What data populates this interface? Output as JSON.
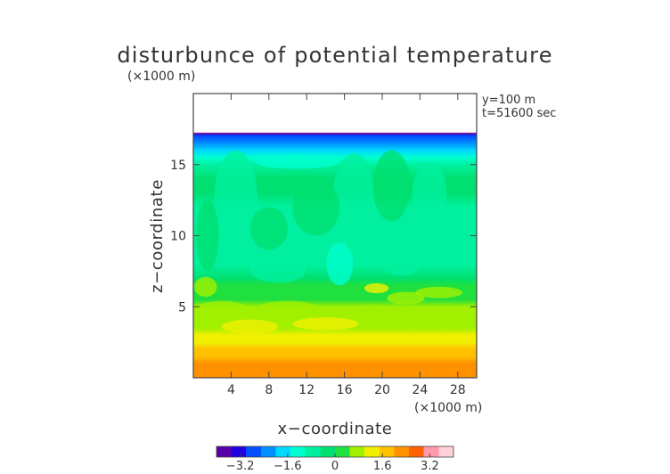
{
  "chart_data": {
    "type": "heatmap",
    "title": "disturbunce of potential temperature",
    "xlabel": "x−coordinate",
    "ylabel": "z−coordinate",
    "x_unit": "(×1000 m)",
    "y_unit": "(×1000 m)",
    "info_lines": [
      "y=100 m",
      "t=51600 sec"
    ],
    "xlim": [
      0,
      30
    ],
    "ylim": [
      0,
      20
    ],
    "x_ticks": [
      4,
      8,
      12,
      16,
      20,
      24,
      28
    ],
    "y_ticks": [
      5,
      10,
      15
    ],
    "domain_top_km": 17.2,
    "colorbar": {
      "range": [
        -4,
        4
      ],
      "tick_values": [
        -3.2,
        -1.6,
        0,
        1.6,
        3.2
      ],
      "tick_labels": [
        "−3.2",
        "−1.6",
        "0",
        "1.6",
        "3.2"
      ],
      "colors": [
        "#5a00a8",
        "#2200e0",
        "#0050ff",
        "#0090ff",
        "#00d8ff",
        "#00ffd0",
        "#00f0a0",
        "#00e070",
        "#20e040",
        "#a0f000",
        "#f0f000",
        "#ffc000",
        "#ff9000",
        "#ff6000",
        "#ff9aa8",
        "#ffd0d8"
      ]
    },
    "z_levels_km": [
      0.0,
      0.5,
      1.0,
      1.5,
      2.0,
      2.5,
      3.0,
      3.5,
      4.0,
      4.5,
      5.0,
      5.5,
      6.0,
      6.5,
      7.0,
      8.0,
      9.0,
      10.0,
      11.0,
      12.0,
      13.0,
      14.0,
      15.0,
      15.5,
      16.0,
      16.5,
      17.0,
      17.2
    ],
    "profile_values": [
      2.4,
      2.2,
      2.0,
      1.8,
      1.5,
      1.2,
      1.0,
      0.7,
      0.5,
      0.6,
      0.6,
      0.4,
      0.2,
      0.1,
      -0.1,
      -0.6,
      -0.7,
      -0.8,
      -0.8,
      -0.6,
      -0.4,
      -0.5,
      -0.8,
      -1.2,
      -1.6,
      -2.2,
      -3.0,
      -3.5
    ]
  }
}
